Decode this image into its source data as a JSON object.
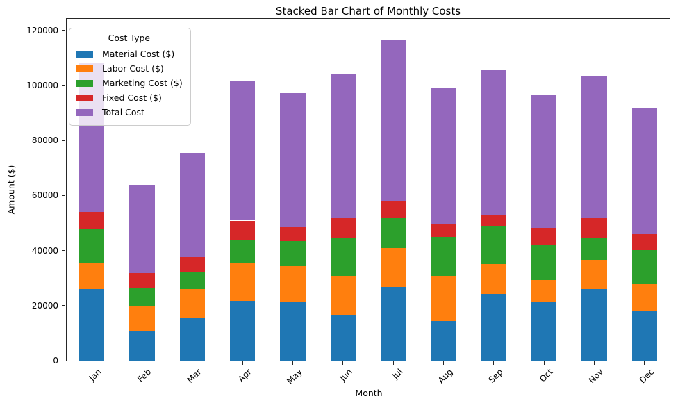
{
  "chart_data": {
    "type": "bar",
    "stacked": true,
    "title": "Stacked Bar Chart of Monthly Costs",
    "xlabel": "Month",
    "ylabel": "Amount ($)",
    "categories": [
      "Jan",
      "Feb",
      "Mar",
      "Apr",
      "May",
      "Jun",
      "Jul",
      "Aug",
      "Sep",
      "Oct",
      "Nov",
      "Dec"
    ],
    "series": [
      {
        "key": "material-cost",
        "name": "Material Cost ($)",
        "color": "#1f77b4",
        "values": [
          26000,
          10700,
          15300,
          21800,
          21550,
          16350,
          26850,
          14300,
          24200,
          21400,
          26050,
          18300
        ]
      },
      {
        "key": "labor-cost",
        "name": "Labor Cost ($)",
        "color": "#ff7f0e",
        "values": [
          9650,
          9200,
          10700,
          13550,
          12850,
          14500,
          14100,
          16600,
          10900,
          7850,
          10550,
          9650
        ]
      },
      {
        "key": "marketing-cost",
        "name": "Marketing Cost ($)",
        "color": "#2ca02c",
        "values": [
          12300,
          6300,
          6300,
          8650,
          8950,
          13750,
          10900,
          14000,
          13850,
          13000,
          7900,
          12200
        ]
      },
      {
        "key": "fixed-cost",
        "name": "Fixed Cost ($)",
        "color": "#d62728",
        "values": [
          6050,
          5700,
          5450,
          6900,
          5300,
          7400,
          6350,
          4600,
          3800,
          5950,
          7250,
          5850
        ]
      },
      {
        "key": "total-cost",
        "name": "Total Cost",
        "color": "#9467bd",
        "values": [
          54000,
          31900,
          37750,
          50900,
          48650,
          52000,
          58200,
          49500,
          52750,
          48200,
          51750,
          46000
        ]
      }
    ],
    "legend": {
      "title": "Cost Type",
      "position": "upper-left"
    },
    "yticks": [
      0,
      20000,
      40000,
      60000,
      80000,
      100000,
      120000
    ],
    "ylim": [
      0,
      124270
    ],
    "grid": false
  }
}
